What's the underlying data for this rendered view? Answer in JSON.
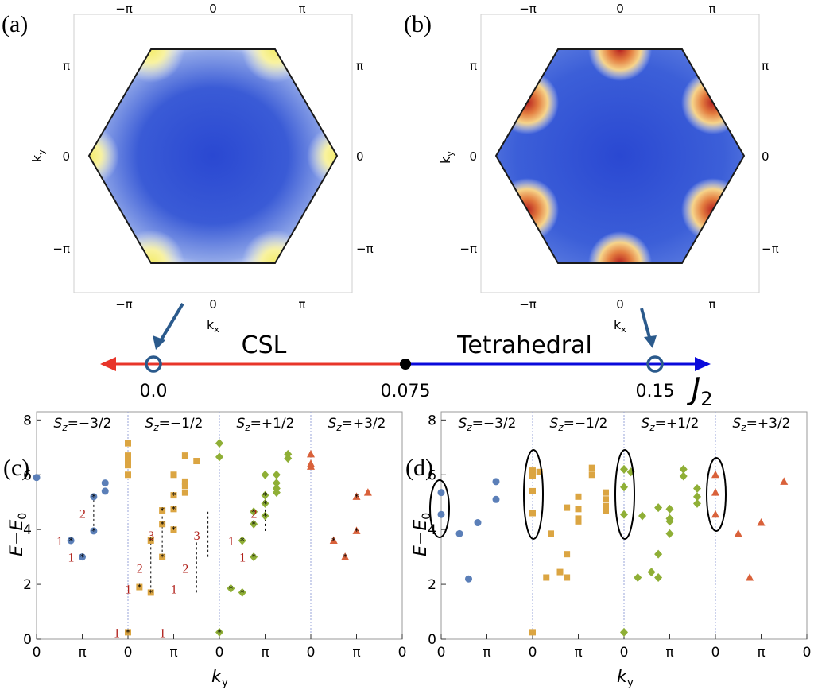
{
  "panels": {
    "a": {
      "label": "(a)",
      "top_ticks": [
        "−π",
        "0",
        "π"
      ],
      "bottom_ticks": [
        "−π",
        "0",
        "π"
      ],
      "left_ticks": [
        "π",
        "0",
        "−π"
      ],
      "right_ticks": [
        "π",
        "0",
        "−π"
      ],
      "xlabel": "k",
      "xlabel_sub": "x",
      "ylabel": "k",
      "ylabel_sub": "y",
      "colors": {
        "base": "#3d62d6",
        "edge": "#ffffff",
        "peak": "#f4ec6a"
      }
    },
    "b": {
      "label": "(b)",
      "top_ticks": [
        "−π",
        "0",
        "π"
      ],
      "bottom_ticks": [
        "−π",
        "0",
        "π"
      ],
      "left_ticks": [
        "π",
        "0",
        "−π"
      ],
      "right_ticks": [
        "π",
        "0",
        "−π"
      ],
      "xlabel": "k",
      "xlabel_sub": "x",
      "ylabel": "k",
      "ylabel_sub": "y",
      "colors": {
        "base": "#3d62d6",
        "mid": "#ffffff",
        "warm": "#e8a34a",
        "peak": "#b5201f"
      }
    }
  },
  "phase": {
    "left_label": "CSL",
    "right_label": "Tetrahedral",
    "ticks": [
      "0.0",
      "0.075",
      "0.15"
    ],
    "axis_label": "J",
    "axis_sub": "2",
    "colors": {
      "left": "#e8352a",
      "right": "#0a0adb",
      "marker": "#2b5a8c",
      "dot": "#000000"
    }
  },
  "chart_data": [
    {
      "type": "scatter",
      "panel": "(c)",
      "ylabel": "E−E",
      "ylabel_sub": "0",
      "xlabel": "k",
      "xlabel_sub": "y",
      "ylim": [
        0,
        8.3
      ],
      "yticks": [
        "0",
        "2",
        "4",
        "6",
        "8"
      ],
      "xticks": [
        "0",
        "π",
        "0",
        "π",
        "0",
        "π",
        "0",
        "π",
        "0"
      ],
      "sectors": [
        {
          "name": "S",
          "sub": "z",
          "value": "=−3/2"
        },
        {
          "name": "S",
          "sub": "z",
          "value": "=−1/2"
        },
        {
          "name": "S",
          "sub": "z",
          "value": "=+1/2"
        },
        {
          "name": "S",
          "sub": "z",
          "value": "=+3/2"
        }
      ],
      "series": [
        {
          "name": "Sz=-3/2",
          "marker": "circle",
          "color": "#5b7fb8",
          "points": [
            [
              0.0,
              5.9
            ],
            [
              0.75,
              3.6
            ],
            [
              1.0,
              3.0
            ],
            [
              1.25,
              5.2
            ],
            [
              1.25,
              3.95
            ],
            [
              1.5,
              5.7
            ],
            [
              1.5,
              5.4
            ]
          ]
        },
        {
          "name": "Sz=-1/2",
          "marker": "square",
          "color": "#dba542",
          "points": [
            [
              0.0,
              7.15
            ],
            [
              0.0,
              6.7
            ],
            [
              0.0,
              6.45
            ],
            [
              0.0,
              6.35
            ],
            [
              0.0,
              6.0
            ],
            [
              0.0,
              0.25
            ],
            [
              0.25,
              1.9
            ],
            [
              0.5,
              3.6
            ],
            [
              0.5,
              1.7
            ],
            [
              0.75,
              4.7
            ],
            [
              0.75,
              4.2
            ],
            [
              0.75,
              3.0
            ],
            [
              1.0,
              6.0
            ],
            [
              1.0,
              5.25
            ],
            [
              1.0,
              4.75
            ],
            [
              1.0,
              4.0
            ],
            [
              1.25,
              6.7
            ],
            [
              1.25,
              5.75
            ],
            [
              1.25,
              5.6
            ],
            [
              1.25,
              5.35
            ],
            [
              1.5,
              6.5
            ]
          ]
        },
        {
          "name": "Sz=+1/2",
          "marker": "diamond",
          "color": "#8faf36",
          "points": [
            [
              0.0,
              7.15
            ],
            [
              0.0,
              6.65
            ],
            [
              0.0,
              0.25
            ],
            [
              0.25,
              1.85
            ],
            [
              0.5,
              3.6
            ],
            [
              0.5,
              1.7
            ],
            [
              0.75,
              4.65
            ],
            [
              0.75,
              4.2
            ],
            [
              0.75,
              3.0
            ],
            [
              1.0,
              6.0
            ],
            [
              1.0,
              5.25
            ],
            [
              1.0,
              4.95
            ],
            [
              1.0,
              4.5
            ],
            [
              1.25,
              6.0
            ],
            [
              1.25,
              5.7
            ],
            [
              1.25,
              5.5
            ],
            [
              1.25,
              5.35
            ],
            [
              1.5,
              6.75
            ],
            [
              1.5,
              6.6
            ]
          ]
        },
        {
          "name": "Sz=+3/2",
          "marker": "triangle",
          "color": "#d9613a",
          "points": [
            [
              0.0,
              6.75
            ],
            [
              0.0,
              6.4
            ],
            [
              0.0,
              6.3
            ],
            [
              0.5,
              3.6
            ],
            [
              0.75,
              3.0
            ],
            [
              1.0,
              5.2
            ],
            [
              1.0,
              3.95
            ],
            [
              1.25,
              5.35
            ]
          ]
        }
      ],
      "annotations": [
        {
          "text": "1",
          "x": 0.75,
          "y": 3.6
        },
        {
          "text": "1",
          "x": 1.0,
          "y": 3.0
        },
        {
          "text": "2",
          "x": 1.25,
          "y": 4.6
        },
        {
          "text": "1",
          "x": 2.0,
          "y": 0.25
        },
        {
          "text": "1",
          "x": 2.25,
          "y": 1.85
        },
        {
          "text": "2",
          "x": 2.5,
          "y": 2.6
        },
        {
          "text": "3",
          "x": 2.75,
          "y": 3.8
        },
        {
          "text": "1",
          "x": 3.0,
          "y": 0.25
        },
        {
          "text": "1",
          "x": 3.25,
          "y": 1.85
        },
        {
          "text": "2",
          "x": 3.5,
          "y": 2.6
        },
        {
          "text": "3",
          "x": 3.75,
          "y": 3.8
        },
        {
          "text": "1",
          "x": 4.5,
          "y": 3.6
        },
        {
          "text": "1",
          "x": 4.75,
          "y": 3.0
        },
        {
          "text": "2",
          "x": 5.0,
          "y": 4.6
        }
      ]
    },
    {
      "type": "scatter",
      "panel": "(d)",
      "ylabel": "E−E",
      "ylabel_sub": "0",
      "xlabel": "k",
      "xlabel_sub": "y",
      "ylim": [
        0,
        8.3
      ],
      "yticks": [
        "0",
        "2",
        "4",
        "6",
        "8"
      ],
      "xticks": [
        "0",
        "π",
        "0",
        "π",
        "0",
        "π",
        "0",
        "π",
        "0"
      ],
      "sectors": [
        {
          "name": "S",
          "sub": "z",
          "value": "=−3/2"
        },
        {
          "name": "S",
          "sub": "z",
          "value": "=−1/2"
        },
        {
          "name": "S",
          "sub": "z",
          "value": "=+1/2"
        },
        {
          "name": "S",
          "sub": "z",
          "value": "=+3/2"
        }
      ],
      "series": [
        {
          "name": "Sz=-3/2",
          "marker": "circle",
          "color": "#5b7fb8",
          "points": [
            [
              0.0,
              5.35
            ],
            [
              0.0,
              4.55
            ],
            [
              0.4,
              3.85
            ],
            [
              0.6,
              2.2
            ],
            [
              0.8,
              4.25
            ],
            [
              1.2,
              5.75
            ],
            [
              1.2,
              5.1
            ]
          ]
        },
        {
          "name": "Sz=-1/2",
          "marker": "square",
          "color": "#dba542",
          "points": [
            [
              0.0,
              6.15
            ],
            [
              0.0,
              5.95
            ],
            [
              0.0,
              5.4
            ],
            [
              0.0,
              4.6
            ],
            [
              0.0,
              0.25
            ],
            [
              0.15,
              6.1
            ],
            [
              0.3,
              2.25
            ],
            [
              0.4,
              3.85
            ],
            [
              0.6,
              2.45
            ],
            [
              0.75,
              4.8
            ],
            [
              0.75,
              3.1
            ],
            [
              0.75,
              2.25
            ],
            [
              1.0,
              5.2
            ],
            [
              1.0,
              4.75
            ],
            [
              1.0,
              4.4
            ],
            [
              1.0,
              4.3
            ],
            [
              1.3,
              6.25
            ],
            [
              1.3,
              6.0
            ],
            [
              1.6,
              5.35
            ],
            [
              1.6,
              5.1
            ],
            [
              1.6,
              4.85
            ],
            [
              1.6,
              4.7
            ]
          ]
        },
        {
          "name": "Sz=+1/2",
          "marker": "diamond",
          "color": "#8faf36",
          "points": [
            [
              0.0,
              6.2
            ],
            [
              0.0,
              5.55
            ],
            [
              0.0,
              4.55
            ],
            [
              0.0,
              0.25
            ],
            [
              0.15,
              6.1
            ],
            [
              0.3,
              2.25
            ],
            [
              0.4,
              4.5
            ],
            [
              0.6,
              2.45
            ],
            [
              0.75,
              4.8
            ],
            [
              0.75,
              3.1
            ],
            [
              0.75,
              2.25
            ],
            [
              1.0,
              3.85
            ],
            [
              1.0,
              4.75
            ],
            [
              1.0,
              4.4
            ],
            [
              1.0,
              4.3
            ],
            [
              1.3,
              6.2
            ],
            [
              1.3,
              5.95
            ],
            [
              1.6,
              5.5
            ],
            [
              1.6,
              5.2
            ],
            [
              1.6,
              4.95
            ]
          ]
        },
        {
          "name": "Sz=+3/2",
          "marker": "triangle",
          "color": "#d9613a",
          "points": [
            [
              0.0,
              6.0
            ],
            [
              0.0,
              5.35
            ],
            [
              0.0,
              4.55
            ],
            [
              0.5,
              3.85
            ],
            [
              0.75,
              2.25
            ],
            [
              1.0,
              4.25
            ],
            [
              1.5,
              5.75
            ]
          ]
        }
      ],
      "annotations": []
    }
  ]
}
